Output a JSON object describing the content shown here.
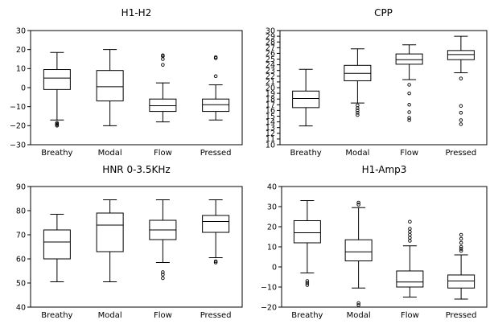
{
  "chart_data": [
    {
      "type": "box",
      "title": "H1-H2",
      "categories": [
        "Breathy",
        "Modal",
        "Flow",
        "Pressed"
      ],
      "ylim": [
        -30,
        30
      ],
      "yticks": [
        -30,
        -20,
        -10,
        0,
        10,
        20,
        30
      ],
      "series": [
        {
          "whisker_low": -17,
          "q1": -1,
          "median": 5,
          "q3": 9.5,
          "whisker_high": 18.5,
          "outliers": [
            -18.5,
            -19,
            -19.5,
            -20
          ]
        },
        {
          "whisker_low": -20,
          "q1": -7,
          "median": 0.5,
          "q3": 9,
          "whisker_high": 20,
          "outliers": []
        },
        {
          "whisker_low": -18,
          "q1": -12.5,
          "median": -9.5,
          "q3": -6,
          "whisker_high": 2.5,
          "outliers": [
            12,
            15,
            16.5,
            17
          ]
        },
        {
          "whisker_low": -17,
          "q1": -12.5,
          "median": -9,
          "q3": -6,
          "whisker_high": 1.5,
          "outliers": [
            6,
            15.5,
            16
          ]
        }
      ]
    },
    {
      "type": "box",
      "title": "CPP",
      "categories": [
        "Breathy",
        "Modal",
        "Flow",
        "Pressed"
      ],
      "ylim": [
        10,
        30
      ],
      "yticks": [
        10,
        11,
        12,
        13,
        14,
        15,
        16,
        17,
        18,
        19,
        20,
        21,
        22,
        23,
        24,
        25,
        26,
        27,
        28,
        29,
        30
      ],
      "series": [
        {
          "whisker_low": 13.3,
          "q1": 16.5,
          "median": 18.1,
          "q3": 19.4,
          "whisker_high": 23.2,
          "outliers": []
        },
        {
          "whisker_low": 17.3,
          "q1": 21.2,
          "median": 22.5,
          "q3": 23.9,
          "whisker_high": 26.8,
          "outliers": [
            15.2,
            15.6,
            16,
            16.4,
            16.9
          ]
        },
        {
          "whisker_low": 21.4,
          "q1": 24.1,
          "median": 24.9,
          "q3": 25.9,
          "whisker_high": 27.5,
          "outliers": [
            14.3,
            14.7,
            15.7,
            17,
            19,
            20.5
          ]
        },
        {
          "whisker_low": 22.6,
          "q1": 24.9,
          "median": 25.8,
          "q3": 26.5,
          "whisker_high": 29,
          "outliers": [
            13.6,
            14.3,
            15.6,
            16.8,
            21.6
          ]
        }
      ]
    },
    {
      "type": "box",
      "title": "HNR 0-3.5KHz",
      "categories": [
        "Breathy",
        "Modal",
        "Flow",
        "Pressed"
      ],
      "ylim": [
        40,
        90
      ],
      "yticks": [
        40,
        50,
        60,
        70,
        80,
        90
      ],
      "series": [
        {
          "whisker_low": 50.5,
          "q1": 60,
          "median": 67,
          "q3": 72,
          "whisker_high": 78.5,
          "outliers": []
        },
        {
          "whisker_low": 50.5,
          "q1": 63,
          "median": 74,
          "q3": 79,
          "whisker_high": 84.5,
          "outliers": []
        },
        {
          "whisker_low": 58.5,
          "q1": 68,
          "median": 72,
          "q3": 76,
          "whisker_high": 84.5,
          "outliers": [
            52,
            53.5,
            54.5
          ]
        },
        {
          "whisker_low": 60.5,
          "q1": 71,
          "median": 75.5,
          "q3": 78,
          "whisker_high": 84.5,
          "outliers": [
            58.5,
            59
          ]
        }
      ]
    },
    {
      "type": "box",
      "title": "H1-Amp3",
      "categories": [
        "Breathy",
        "Modal",
        "Flow",
        "Pressed"
      ],
      "ylim": [
        -20,
        40
      ],
      "yticks": [
        -20,
        -10,
        0,
        10,
        20,
        30,
        40
      ],
      "series": [
        {
          "whisker_low": -3,
          "q1": 12,
          "median": 17,
          "q3": 23,
          "whisker_high": 33,
          "outliers": [
            -7,
            -8,
            -9
          ]
        },
        {
          "whisker_low": -10.5,
          "q1": 3,
          "median": 7.5,
          "q3": 13.5,
          "whisker_high": 29.5,
          "outliers": [
            31,
            32,
            -18,
            -19
          ]
        },
        {
          "whisker_low": -15,
          "q1": -10,
          "median": -7.5,
          "q3": -2,
          "whisker_high": 10.5,
          "outliers": [
            13,
            14.5,
            16,
            17.5,
            19,
            22.5
          ]
        },
        {
          "whisker_low": -16,
          "q1": -10.5,
          "median": -7,
          "q3": -4,
          "whisker_high": 6,
          "outliers": [
            8,
            9,
            10,
            12,
            14,
            16
          ]
        }
      ]
    }
  ]
}
